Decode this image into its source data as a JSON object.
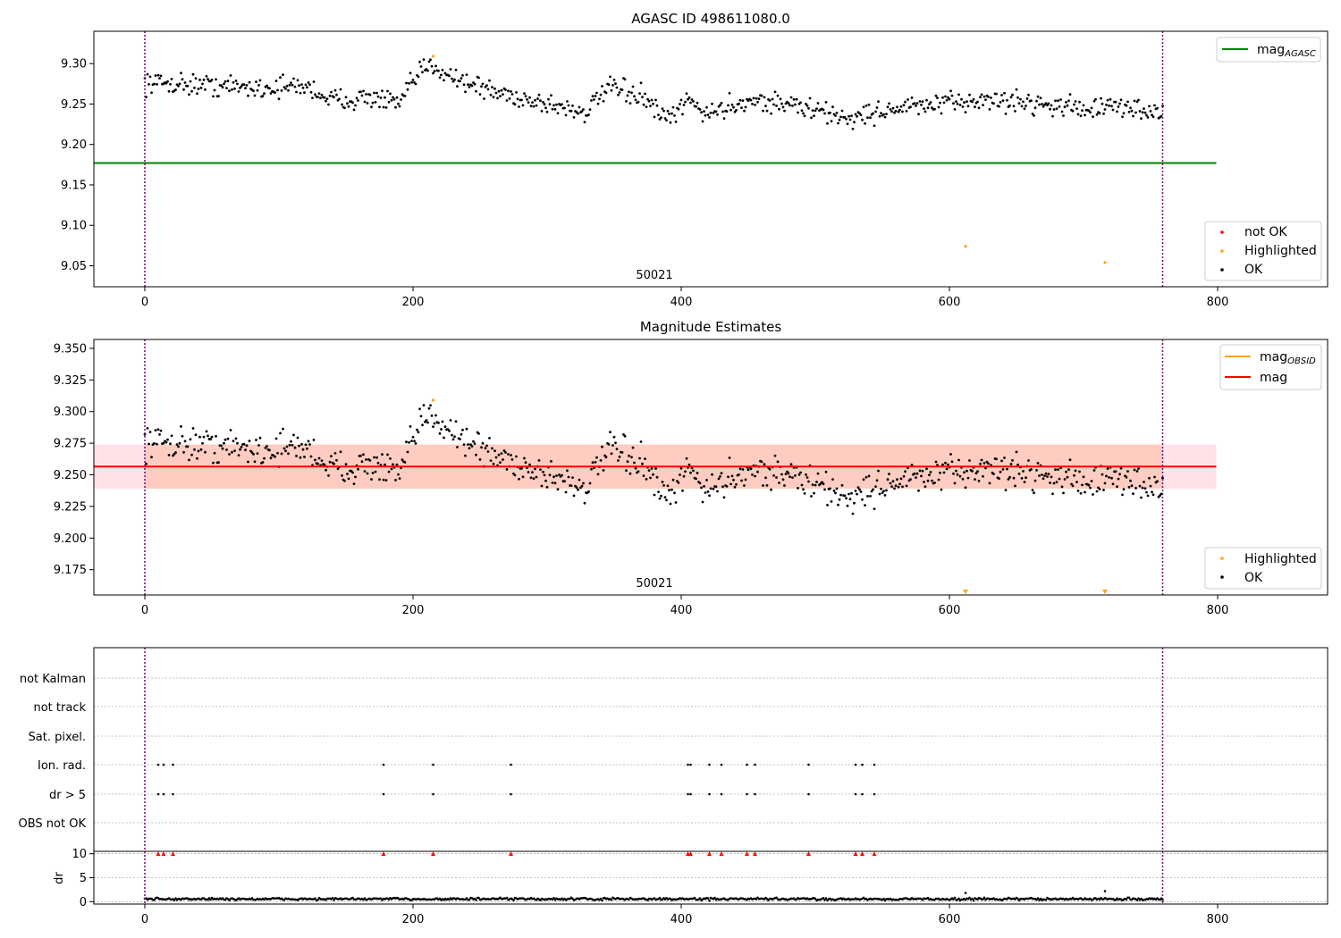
{
  "figure": {
    "obsid_label": "50021",
    "x_ticks": [
      0,
      200,
      400,
      600,
      800
    ],
    "xlim": [
      -38,
      882
    ],
    "vlines_x": [
      0,
      759
    ],
    "colors": {
      "ok": "#000000",
      "highlighted": "#ffa500",
      "not_ok": "#ff0000",
      "mag_agasc": "#008000",
      "mag_obsid": "#ffa500",
      "mag": "#ff0000",
      "band_outer": "#ffc0cb",
      "band_inner": "#ffa07a",
      "vline": "#800080",
      "grid": "#b0b0b0"
    }
  },
  "chart_data": [
    {
      "id": "panel1",
      "type": "scatter",
      "title": "AGASC ID 498611080.0",
      "ylim": [
        9.024,
        9.34
      ],
      "y_ticks": [
        9.05,
        9.1,
        9.15,
        9.2,
        9.25,
        9.3
      ],
      "y_tick_labels": [
        "9.05",
        "9.10",
        "9.15",
        "9.20",
        "9.25",
        "9.30"
      ],
      "mag_agasc": 9.177,
      "mag_agasc_x_range": [
        -38,
        799
      ],
      "highlighted_points": [
        [
          215,
          9.309
        ],
        [
          612,
          9.074
        ],
        [
          716,
          9.054
        ]
      ],
      "legend_lines": [
        {
          "label": "mag",
          "sub": "AGASC",
          "color": "#008000"
        }
      ],
      "legend_points": [
        {
          "label": "not OK",
          "color": "#ff0000"
        },
        {
          "label": "Highlighted",
          "color": "#ffa500"
        },
        {
          "label": "OK",
          "color": "#000000"
        }
      ],
      "ok_series_profile": [
        [
          0,
          9.277
        ],
        [
          30,
          9.275
        ],
        [
          60,
          9.272
        ],
        [
          90,
          9.27
        ],
        [
          120,
          9.272
        ],
        [
          140,
          9.255
        ],
        [
          170,
          9.258
        ],
        [
          190,
          9.25
        ],
        [
          205,
          9.29
        ],
        [
          215,
          9.298
        ],
        [
          235,
          9.28
        ],
        [
          260,
          9.265
        ],
        [
          300,
          9.25
        ],
        [
          330,
          9.24
        ],
        [
          345,
          9.27
        ],
        [
          370,
          9.26
        ],
        [
          390,
          9.228
        ],
        [
          405,
          9.255
        ],
        [
          420,
          9.238
        ],
        [
          450,
          9.255
        ],
        [
          480,
          9.25
        ],
        [
          510,
          9.238
        ],
        [
          525,
          9.232
        ],
        [
          560,
          9.245
        ],
        [
          600,
          9.25
        ],
        [
          620,
          9.255
        ],
        [
          660,
          9.252
        ],
        [
          700,
          9.245
        ],
        [
          740,
          9.245
        ],
        [
          759,
          9.238
        ]
      ]
    },
    {
      "id": "panel2",
      "type": "scatter",
      "title": "Magnitude Estimates",
      "ylim": [
        9.155,
        9.357
      ],
      "y_ticks": [
        9.175,
        9.2,
        9.225,
        9.25,
        9.275,
        9.3,
        9.325,
        9.35
      ],
      "y_tick_labels": [
        "9.175",
        "9.200",
        "9.225",
        "9.250",
        "9.275",
        "9.300",
        "9.325",
        "9.350"
      ],
      "mag": 9.2565,
      "mag_band": [
        9.239,
        9.274
      ],
      "band_x_range": [
        -38,
        799
      ],
      "highlighted_points": [
        [
          215,
          9.309
        ]
      ],
      "highlighted_below_x": [
        612,
        716
      ],
      "legend_lines": [
        {
          "label": "mag",
          "sub": "OBSID",
          "color": "#ffa500"
        },
        {
          "label": "mag",
          "sub": "",
          "color": "#ff0000"
        }
      ],
      "legend_points": [
        {
          "label": "Highlighted",
          "color": "#ffa500"
        },
        {
          "label": "OK",
          "color": "#000000"
        }
      ]
    },
    {
      "id": "panel3",
      "type": "scatter",
      "flag_rows": [
        "not Kalman",
        "not track",
        "Sat. pixel.",
        "Ion. rad.",
        "dr > 5",
        "OBS not OK"
      ],
      "flag_x": [
        10,
        14,
        21,
        178,
        215,
        273,
        405,
        407,
        421,
        430,
        449,
        455,
        495,
        530,
        535,
        544
      ],
      "dr_ylim": [
        -0.5,
        10.5
      ],
      "dr_ticks": [
        0,
        5,
        10
      ],
      "dr_tick_labels": [
        "0",
        "5",
        "10"
      ],
      "dr_label": "dr",
      "dr_outliers": [
        [
          612,
          1.8
        ],
        [
          716,
          2.2
        ]
      ],
      "dr_flag_x": [
        10,
        14,
        21,
        178,
        215,
        273,
        405,
        407,
        421,
        430,
        449,
        455,
        495,
        530,
        535,
        544
      ]
    }
  ]
}
